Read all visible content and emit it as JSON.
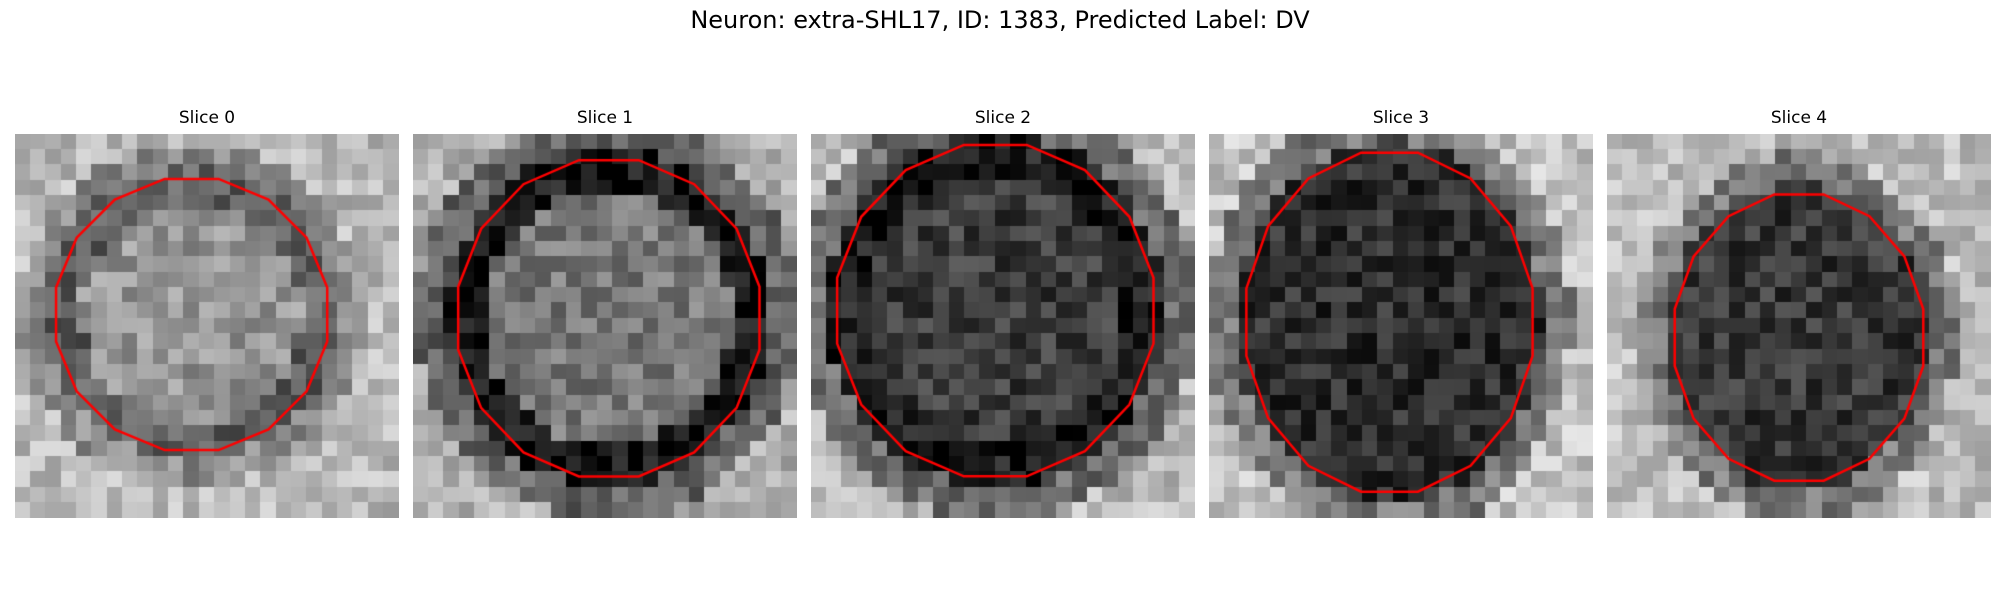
{
  "figure": {
    "title": "Neuron: extra-SHL17, ID: 1383, Predicted Label: DV",
    "contour_color": "#ff0000"
  },
  "panels": [
    {
      "title": "Slice 0",
      "seed": 11,
      "center": [
        0.46,
        0.47
      ],
      "radii": [
        0.36,
        0.36
      ],
      "inner": 150,
      "ring": 95,
      "bg": 185
    },
    {
      "title": "Slice 1",
      "seed": 23,
      "center": [
        0.51,
        0.48
      ],
      "radii": [
        0.4,
        0.42
      ],
      "inner": 120,
      "ring": 25,
      "bg": 175
    },
    {
      "title": "Slice 2",
      "seed": 37,
      "center": [
        0.48,
        0.46
      ],
      "radii": [
        0.42,
        0.44
      ],
      "inner": 60,
      "ring": 30,
      "bg": 185
    },
    {
      "title": "Slice 3",
      "seed": 41,
      "center": [
        0.47,
        0.49
      ],
      "radii": [
        0.38,
        0.45
      ],
      "inner": 45,
      "ring": 45,
      "bg": 195
    },
    {
      "title": "Slice 4",
      "seed": 53,
      "center": [
        0.5,
        0.53
      ],
      "radii": [
        0.33,
        0.38
      ],
      "inner": 55,
      "ring": 55,
      "bg": 190
    }
  ]
}
